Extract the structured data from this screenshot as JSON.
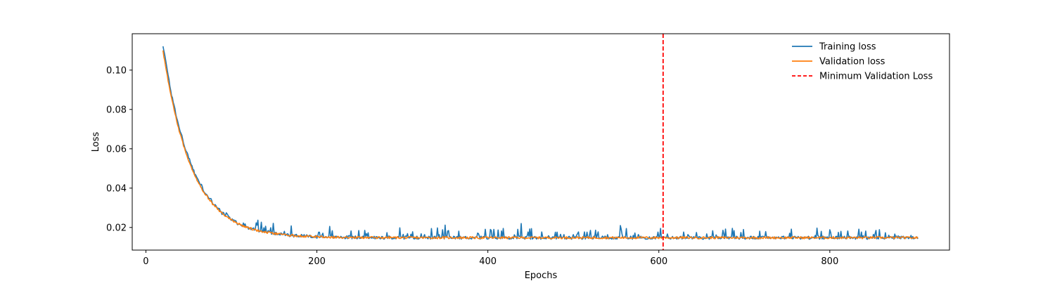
{
  "chart_data": {
    "type": "line",
    "xlabel": "Epochs",
    "ylabel": "Loss",
    "xlim": [
      -16,
      940
    ],
    "ylim": [
      0.0085,
      0.1185
    ],
    "xticks": [
      0,
      200,
      400,
      600,
      800
    ],
    "yticks": [
      0.02,
      0.04,
      0.06,
      0.08,
      0.1
    ],
    "ytick_labels": [
      "0.02",
      "0.04",
      "0.06",
      "0.08",
      "0.10"
    ],
    "legend_position": "top-right",
    "grid": false,
    "series": [
      {
        "name": "Training loss",
        "color": "#1f77b4",
        "x_start": 20,
        "x_end": 903,
        "start_value": 0.113,
        "plateau_value": 0.0148,
        "decay_epochs": 34,
        "noise": "high"
      },
      {
        "name": "Validation loss",
        "color": "#ff7f0e",
        "x_start": 20,
        "x_end": 903,
        "start_value": 0.11,
        "plateau_value": 0.0148,
        "decay_epochs": 34,
        "noise": "low"
      }
    ],
    "vline": {
      "name": "Minimum Validation Loss",
      "x": 605,
      "color": "#ff0000",
      "style": "dashed"
    }
  }
}
